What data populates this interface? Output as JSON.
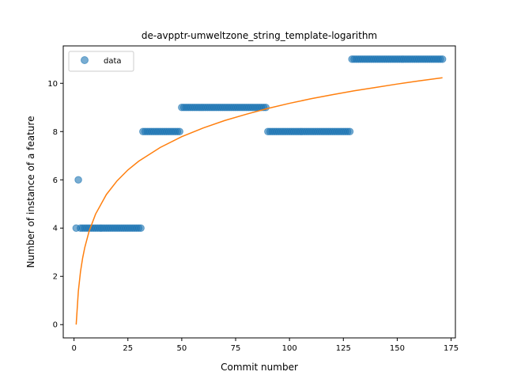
{
  "chart_data": {
    "type": "scatter",
    "title": "de-avpptr-umweltzone_string_template-logarithm",
    "xlabel": "Commit number",
    "ylabel": "Number of instance of a feature",
    "xlim": [
      -5,
      177
    ],
    "ylim": [
      -0.55,
      11.55
    ],
    "xticks": [
      0,
      25,
      50,
      75,
      100,
      125,
      150,
      175
    ],
    "yticks": [
      0,
      2,
      4,
      6,
      8,
      10
    ],
    "legend": {
      "placement": "top-left",
      "entries": [
        "data"
      ]
    },
    "grid": false,
    "series": [
      {
        "name": "data",
        "kind": "scatter",
        "color": "#1f77b4",
        "segments": [
          {
            "x_start": 1,
            "x_end": 1,
            "y": 4
          },
          {
            "x_start": 2,
            "x_end": 2,
            "y": 6
          },
          {
            "x_start": 3,
            "x_end": 31,
            "y": 4
          },
          {
            "x_start": 32,
            "x_end": 49,
            "y": 8
          },
          {
            "x_start": 50,
            "x_end": 89,
            "y": 9
          },
          {
            "x_start": 90,
            "x_end": 128,
            "y": 8
          },
          {
            "x_start": 129,
            "x_end": 171,
            "y": 11
          }
        ]
      },
      {
        "kind": "line",
        "color": "#ff7f0e",
        "model": "logarithmic fit",
        "points": [
          [
            1,
            0.0
          ],
          [
            2,
            1.38
          ],
          [
            3,
            2.19
          ],
          [
            4,
            2.76
          ],
          [
            5,
            3.2
          ],
          [
            7,
            3.87
          ],
          [
            10,
            4.58
          ],
          [
            15,
            5.39
          ],
          [
            20,
            5.96
          ],
          [
            25,
            6.41
          ],
          [
            30,
            6.77
          ],
          [
            40,
            7.34
          ],
          [
            50,
            7.79
          ],
          [
            60,
            8.15
          ],
          [
            70,
            8.46
          ],
          [
            80,
            8.72
          ],
          [
            90,
            8.96
          ],
          [
            100,
            9.17
          ],
          [
            110,
            9.36
          ],
          [
            120,
            9.53
          ],
          [
            130,
            9.69
          ],
          [
            140,
            9.83
          ],
          [
            150,
            9.97
          ],
          [
            160,
            10.1
          ],
          [
            171,
            10.23
          ]
        ]
      }
    ]
  }
}
